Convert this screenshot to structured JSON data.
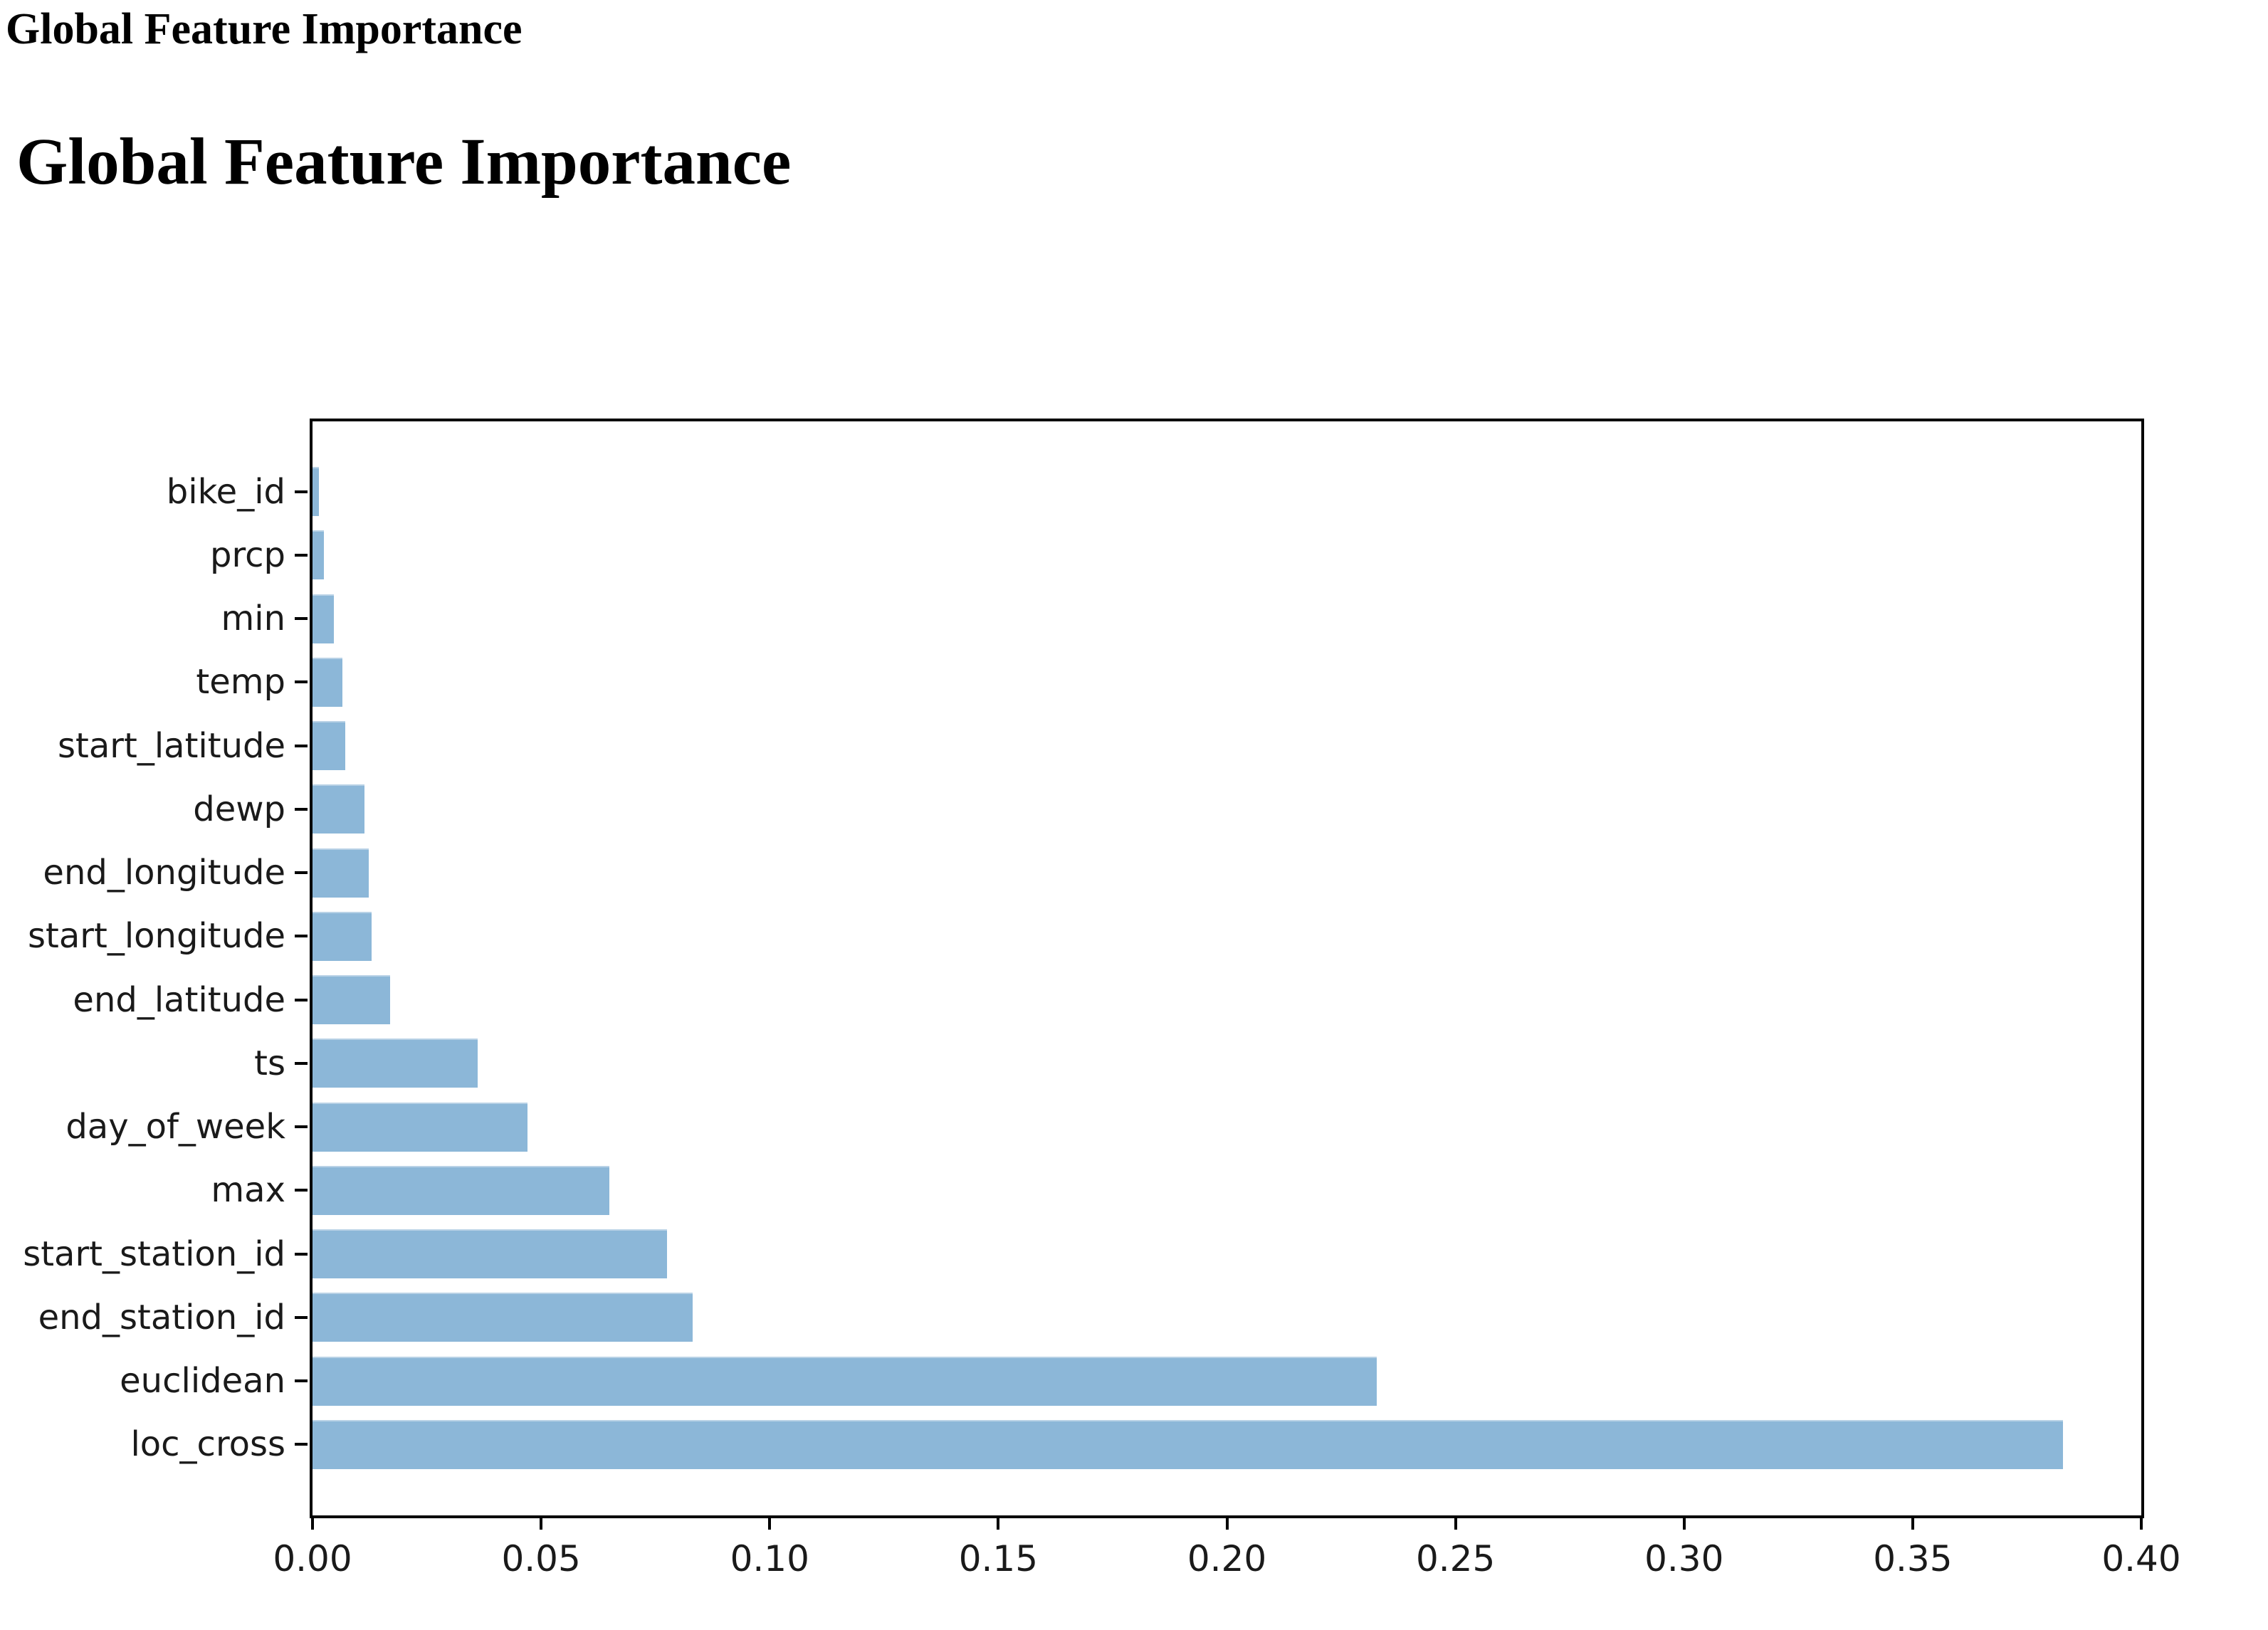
{
  "page": {
    "header_title": "Global Feature Importance",
    "main_title": "Global Feature Importance"
  },
  "chart_data": {
    "type": "bar",
    "orientation": "horizontal",
    "title": "",
    "xlabel": "",
    "ylabel": "",
    "categories": [
      "bike_id",
      "prcp",
      "min",
      "temp",
      "start_latitude",
      "dewp",
      "end_longitude",
      "start_longitude",
      "end_latitude",
      "ts",
      "day_of_week",
      "max",
      "start_station_id",
      "end_station_id",
      "euclidean",
      "loc_cross"
    ],
    "values": [
      0.0014,
      0.0025,
      0.0047,
      0.0065,
      0.0071,
      0.0113,
      0.0123,
      0.0129,
      0.0169,
      0.0362,
      0.047,
      0.065,
      0.0776,
      0.0832,
      0.2327,
      0.3828
    ],
    "xlim": [
      0,
      0.4
    ],
    "x_ticks": [
      "0.00",
      "0.05",
      "0.10",
      "0.15",
      "0.20",
      "0.25",
      "0.30",
      "0.35",
      "0.40"
    ],
    "grid": false,
    "legend_position": "none",
    "bar_color": "#8cb7d8",
    "axis_color": "#000000",
    "label_color": "#1a1a1a"
  }
}
